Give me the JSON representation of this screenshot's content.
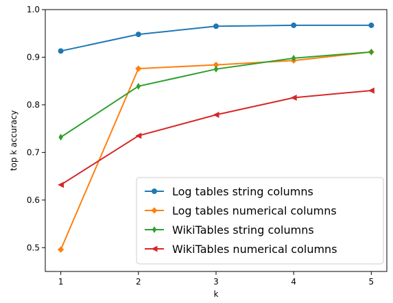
{
  "chart_data": {
    "type": "line",
    "title": "",
    "xlabel": "k",
    "ylabel": "top k accuracy",
    "x": [
      1,
      2,
      3,
      4,
      5
    ],
    "x_ticks": [
      "1",
      "2",
      "3",
      "4",
      "5"
    ],
    "y_ticks": [
      "0.5",
      "0.6",
      "0.7",
      "0.8",
      "0.9",
      "1.0"
    ],
    "xlim": [
      0.8,
      5.2
    ],
    "ylim": [
      0.45,
      1.0
    ],
    "grid": false,
    "legend_position": "lower-right",
    "series": [
      {
        "name": "Log tables string columns",
        "color": "#1f77b4",
        "marker": "circle",
        "values": [
          0.913,
          0.948,
          0.965,
          0.967,
          0.967
        ]
      },
      {
        "name": "Log tables numerical columns",
        "color": "#ff7f0e",
        "marker": "diamond",
        "values": [
          0.496,
          0.876,
          0.884,
          0.893,
          0.911
        ]
      },
      {
        "name": "WikiTables string columns",
        "color": "#2ca02c",
        "marker": "thin-diamond",
        "values": [
          0.732,
          0.839,
          0.875,
          0.898,
          0.911
        ]
      },
      {
        "name": "WikiTables numerical columns",
        "color": "#d62728",
        "marker": "triangle-left",
        "values": [
          0.632,
          0.735,
          0.779,
          0.815,
          0.83
        ]
      }
    ]
  }
}
